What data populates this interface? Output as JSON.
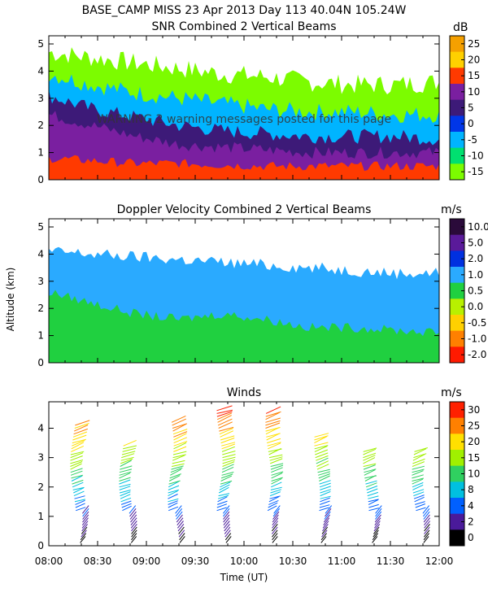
{
  "header": {
    "line1": "BASE_CAMP MISS  23 Apr 2013 Day 113 40.04N 105.24W"
  },
  "warning_text": "WARNING  2 warning messages posted for this page",
  "x_axis": {
    "label": "Time (UT)",
    "ticks": [
      "08:00",
      "08:30",
      "09:00",
      "09:30",
      "10:00",
      "10:30",
      "11:00",
      "11:30",
      "12:00"
    ],
    "range_hours": [
      8,
      12
    ]
  },
  "y_axis_label": "Altitude (km)",
  "chart_data": [
    {
      "type": "heatmap",
      "title": "SNR Combined 2 Vertical Beams",
      "unit": "dB",
      "y_ticks": [
        "0",
        "1",
        "2",
        "3",
        "4",
        "5"
      ],
      "ylim": [
        0,
        5.3
      ],
      "colorbar_ticks": [
        "25",
        "20",
        "15",
        "10",
        "5",
        "0",
        "-5",
        "-10",
        "-15"
      ],
      "colorbar_colors": [
        "#f5a000",
        "#ffd000",
        "#ff3a00",
        "#7a1fa0",
        "#3d1a78",
        "#0036e8",
        "#00b4ff",
        "#00e070",
        "#7cfc00"
      ],
      "layers": [
        {
          "level": "-15",
          "top_km": [
            4.7,
            4.5,
            4.3,
            4.1,
            3.9,
            3.8,
            3.6,
            3.5,
            3.5,
            3.6
          ]
        },
        {
          "level": "-5",
          "top_km": [
            3.9,
            3.5,
            3.2,
            3.0,
            2.8,
            2.6,
            2.5,
            2.5,
            2.4,
            2.4
          ]
        },
        {
          "level": "5",
          "top_km": [
            3.1,
            2.6,
            2.3,
            2.0,
            1.8,
            1.7,
            1.6,
            1.6,
            1.6,
            1.5
          ]
        },
        {
          "level": "10",
          "top_km": [
            2.4,
            2.0,
            1.6,
            1.3,
            1.2,
            1.1,
            1.0,
            1.0,
            1.0,
            1.0
          ]
        },
        {
          "level": "15",
          "top_km": [
            0.8,
            0.7,
            0.6,
            0.6,
            0.55,
            0.5,
            0.5,
            0.5,
            0.5,
            0.5
          ]
        }
      ]
    },
    {
      "type": "heatmap",
      "title": "Doppler Velocity Combined 2 Vertical Beams",
      "unit": "m/s",
      "y_ticks": [
        "0",
        "1",
        "2",
        "3",
        "4",
        "5"
      ],
      "ylim": [
        0,
        5.3
      ],
      "colorbar_ticks": [
        "10.0",
        "5.0",
        "2.0",
        "1.0",
        "0.5",
        "0.0",
        "-0.5",
        "-1.0",
        "-2.0"
      ],
      "colorbar_colors": [
        "#2a0a3a",
        "#5a1a9a",
        "#0030e0",
        "#2aaaff",
        "#20d040",
        "#b8f000",
        "#ffd000",
        "#ff8000",
        "#ff1a00"
      ],
      "layers": [
        {
          "level": "1.0",
          "top_km": [
            4.1,
            4.0,
            3.9,
            3.8,
            3.7,
            3.6,
            3.5,
            3.4,
            3.3,
            3.3
          ]
        },
        {
          "level": "0.5",
          "top_km": [
            2.6,
            2.2,
            1.8,
            1.6,
            1.8,
            1.6,
            1.3,
            1.3,
            1.2,
            1.1
          ]
        }
      ]
    },
    {
      "type": "scatter",
      "title": "Winds",
      "unit": "m/s",
      "y_ticks": [
        "0",
        "1",
        "2",
        "3",
        "4"
      ],
      "ylim": [
        0,
        4.9
      ],
      "colorbar_ticks": [
        "30",
        "25",
        "20",
        "15",
        "10",
        "8",
        "4",
        "2",
        "0"
      ],
      "colorbar_colors": [
        "#ff2000",
        "#ff8000",
        "#ffe000",
        "#a0f000",
        "#30d060",
        "#00c0e0",
        "#0060ff",
        "#4a1a9a",
        "#000000"
      ],
      "profile_times_hours": [
        8.25,
        8.75,
        9.25,
        9.75,
        10.25,
        10.75,
        11.25,
        11.75
      ],
      "profile_tops_km": [
        4.2,
        3.5,
        4.3,
        4.6,
        4.5,
        3.8,
        3.3,
        3.3
      ]
    }
  ]
}
